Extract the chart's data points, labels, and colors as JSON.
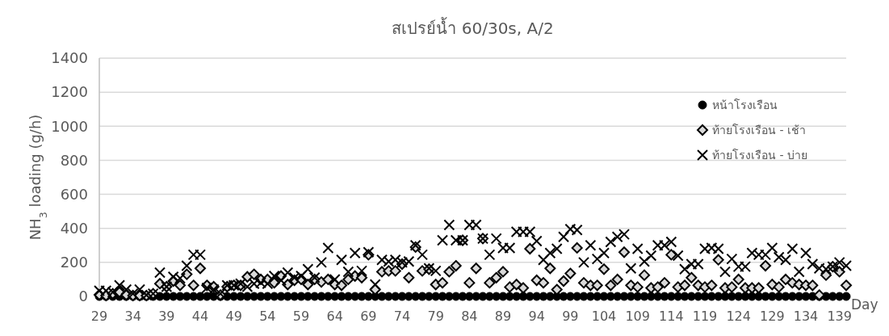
{
  "chart_data": {
    "type": "scatter",
    "title": "สเปรย์น้ำ 60/30s, A/2",
    "xlabel": "Day",
    "ylabel": "NH$_{3}$ loading (g/h)",
    "x": [
      29,
      30,
      31,
      32,
      33,
      34,
      35,
      36,
      37,
      38,
      39,
      40,
      41,
      42,
      43,
      44,
      45,
      46,
      47,
      48,
      49,
      50,
      51,
      52,
      53,
      54,
      55,
      56,
      57,
      58,
      59,
      60,
      61,
      62,
      63,
      64,
      65,
      66,
      67,
      68,
      69,
      70,
      71,
      72,
      73,
      74,
      75,
      76,
      77,
      78,
      79,
      80,
      81,
      82,
      83,
      84,
      85,
      86,
      87,
      88,
      89,
      90,
      91,
      92,
      93,
      94,
      95,
      96,
      97,
      98,
      99,
      100,
      101,
      102,
      103,
      104,
      105,
      106,
      107,
      108,
      109,
      110,
      111,
      112,
      113,
      114,
      115,
      116,
      117,
      118,
      119,
      120,
      121,
      122,
      123,
      124,
      125,
      126,
      127,
      128,
      129,
      130,
      131,
      132,
      133,
      134,
      135,
      136,
      137,
      138,
      139,
      140
    ],
    "xlim": [
      29,
      140
    ],
    "xticks": [
      29,
      34,
      39,
      44,
      49,
      54,
      59,
      64,
      69,
      74,
      79,
      84,
      89,
      94,
      99,
      104,
      109,
      114,
      119,
      124,
      129,
      134,
      139
    ],
    "ylim": [
      0,
      1400
    ],
    "yticks": [
      0,
      200,
      400,
      600,
      800,
      1000,
      1200,
      1400
    ],
    "grid": "y",
    "legend": "top right",
    "series": [
      {
        "name": "หน้าโรงเรือน",
        "color": "#000000",
        "marker": "circle",
        "values": [
          0,
          0,
          0,
          0,
          0,
          0,
          0,
          0,
          0,
          0,
          0,
          0,
          0,
          0,
          0,
          0,
          0,
          0,
          0,
          0,
          0,
          0,
          0,
          0,
          0,
          0,
          0,
          0,
          0,
          0,
          0,
          0,
          0,
          0,
          0,
          0,
          0,
          0,
          0,
          0,
          0,
          0,
          0,
          0,
          0,
          0,
          0,
          0,
          0,
          0,
          0,
          0,
          0,
          0,
          0,
          0,
          0,
          0,
          0,
          0,
          0,
          0,
          0,
          0,
          0,
          0,
          0,
          0,
          0,
          0,
          0,
          0,
          0,
          0,
          0,
          0,
          0,
          0,
          0,
          0,
          0,
          0,
          0,
          0,
          0,
          0,
          0,
          0,
          0,
          0,
          0,
          0,
          0,
          0,
          0,
          0,
          0,
          0,
          0,
          0,
          0,
          0,
          0,
          0,
          0,
          0,
          0,
          0,
          0,
          0,
          0,
          0
        ]
      },
      {
        "name": "ท้ายโรงเรือน - เช้า",
        "color": "#000000",
        "marker": "diamond",
        "values": [
          10,
          5,
          16,
          25,
          8,
          5,
          5,
          5,
          16,
          75,
          57,
          90,
          65,
          130,
          65,
          165,
          65,
          57,
          8,
          57,
          65,
          65,
          115,
          130,
          100,
          100,
          80,
          120,
          70,
          95,
          100,
          70,
          100,
          85,
          100,
          70,
          65,
          100,
          120,
          110,
          245,
          40,
          145,
          150,
          150,
          190,
          110,
          290,
          150,
          160,
          70,
          80,
          145,
          180,
          330,
          80,
          165,
          340,
          80,
          110,
          145,
          55,
          70,
          50,
          280,
          95,
          80,
          165,
          40,
          90,
          135,
          285,
          80,
          65,
          65,
          160,
          65,
          100,
          260,
          65,
          55,
          125,
          50,
          55,
          80,
          245,
          55,
          65,
          110,
          65,
          55,
          65,
          215,
          50,
          55,
          100,
          50,
          50,
          50,
          180,
          70,
          55,
          100,
          80,
          70,
          65,
          65,
          8,
          125,
          175,
          145,
          65
        ]
      },
      {
        "name": "ท้ายโรงเรือน - บ่าย",
        "color": "#000000",
        "marker": "cross",
        "values": [
          33,
          33,
          25,
          65,
          40,
          16,
          40,
          8,
          16,
          140,
          57,
          115,
          107,
          180,
          245,
          245,
          50,
          40,
          16,
          65,
          65,
          75,
          57,
          75,
          80,
          75,
          120,
          95,
          140,
          110,
          120,
          160,
          110,
          200,
          285,
          100,
          215,
          145,
          255,
          150,
          260,
          70,
          215,
          205,
          215,
          200,
          205,
          300,
          245,
          165,
          150,
          330,
          420,
          330,
          330,
          420,
          420,
          340,
          245,
          340,
          285,
          285,
          380,
          380,
          380,
          325,
          215,
          255,
          280,
          350,
          395,
          390,
          200,
          300,
          220,
          255,
          320,
          350,
          365,
          165,
          280,
          205,
          240,
          300,
          300,
          320,
          240,
          160,
          190,
          190,
          280,
          285,
          280,
          145,
          220,
          175,
          175,
          255,
          245,
          245,
          285,
          230,
          215,
          280,
          145,
          255,
          190,
          165,
          160,
          175,
          200,
          180
        ]
      }
    ]
  }
}
